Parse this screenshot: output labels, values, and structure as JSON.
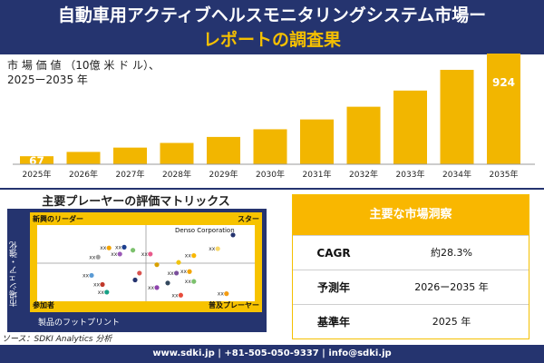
{
  "header": {
    "title_line1": "自動車用アクティブヘルスモニタリングシステム市場ー",
    "title_line2": "レポートの調査果"
  },
  "chart_caption": {
    "line1": "市 場 価 値 （10億 米 ド ル）、",
    "line2": "2025ー2035 年"
  },
  "chart_data": {
    "type": "bar",
    "categories": [
      "2025年",
      "2026年",
      "2027年",
      "2028年",
      "2029年",
      "2030年",
      "2031年",
      "2032年",
      "2033年",
      "2034年",
      "2035年"
    ],
    "values": [
      67,
      103,
      139,
      178,
      228,
      292,
      374,
      480,
      615,
      788,
      924
    ],
    "data_labels": {
      "0": "67",
      "10": "924"
    },
    "ylim": [
      0,
      924
    ],
    "bar_color": "#f2b600",
    "grid": false,
    "ylabel": "",
    "xlabel": ""
  },
  "matrix": {
    "title": "主要プレーヤーの評価マトリックス",
    "quadrant_top_left": "新興のリーダー",
    "quadrant_top_right": "スター",
    "quadrant_bottom_left": "参加者",
    "quadrant_bottom_right": "普及プレーヤー",
    "axis_y": "市場シェア・強化",
    "axis_x": "製品のフットプリント",
    "highlight_label": "Denso Corporation",
    "points": [
      {
        "x": 0.9,
        "y": 0.87,
        "color": "#25346f",
        "label": ""
      },
      {
        "x": 0.4,
        "y": 0.71,
        "color": "#1d3f8f",
        "label": "xx"
      },
      {
        "x": 0.33,
        "y": 0.7,
        "color": "#f3a400",
        "label": "xx"
      },
      {
        "x": 0.44,
        "y": 0.67,
        "color": "#7cc16d",
        "label": ""
      },
      {
        "x": 0.38,
        "y": 0.62,
        "color": "#9b59b6",
        "label": "xx"
      },
      {
        "x": 0.52,
        "y": 0.62,
        "color": "#e85a8c",
        "label": "xx"
      },
      {
        "x": 0.28,
        "y": 0.58,
        "color": "#a0a0a0",
        "label": "xx"
      },
      {
        "x": 0.83,
        "y": 0.69,
        "color": "#f7d76a",
        "label": "xx"
      },
      {
        "x": 0.72,
        "y": 0.6,
        "color": "#f9b700",
        "label": "xx"
      },
      {
        "x": 0.55,
        "y": 0.48,
        "color": "#d8a000",
        "label": ""
      },
      {
        "x": 0.65,
        "y": 0.51,
        "color": "#f1c40f",
        "label": ""
      },
      {
        "x": 0.7,
        "y": 0.39,
        "color": "#f3a400",
        "label": "xx"
      },
      {
        "x": 0.47,
        "y": 0.37,
        "color": "#d9534f",
        "label": ""
      },
      {
        "x": 0.64,
        "y": 0.37,
        "color": "#7a4f9b",
        "label": "xx"
      },
      {
        "x": 0.25,
        "y": 0.34,
        "color": "#5b9bd5",
        "label": "xx"
      },
      {
        "x": 0.45,
        "y": 0.28,
        "color": "#25346f",
        "label": ""
      },
      {
        "x": 0.72,
        "y": 0.26,
        "color": "#7cc16d",
        "label": "xx"
      },
      {
        "x": 0.3,
        "y": 0.22,
        "color": "#c0392b",
        "label": "xx"
      },
      {
        "x": 0.6,
        "y": 0.24,
        "color": "#34495e",
        "label": ""
      },
      {
        "x": 0.55,
        "y": 0.18,
        "color": "#8e44ad",
        "label": "xx"
      },
      {
        "x": 0.32,
        "y": 0.12,
        "color": "#16a085",
        "label": "xx"
      },
      {
        "x": 0.87,
        "y": 0.1,
        "color": "#f39c12",
        "label": "xx"
      },
      {
        "x": 0.66,
        "y": 0.08,
        "color": "#e74c3c",
        "label": "xx"
      }
    ]
  },
  "source": "ソース：SDKI Analytics 分析",
  "insights": {
    "title": "主要な市場洞察",
    "rows": [
      {
        "key": "CAGR",
        "value": "約28.3%"
      },
      {
        "key": "予測年",
        "value": "2026ー2035 年"
      },
      {
        "key": "基準年",
        "value": "2025 年"
      }
    ]
  },
  "footer": "www.sdki.jp | +81-505-050-9337 | info@sdki.jp"
}
